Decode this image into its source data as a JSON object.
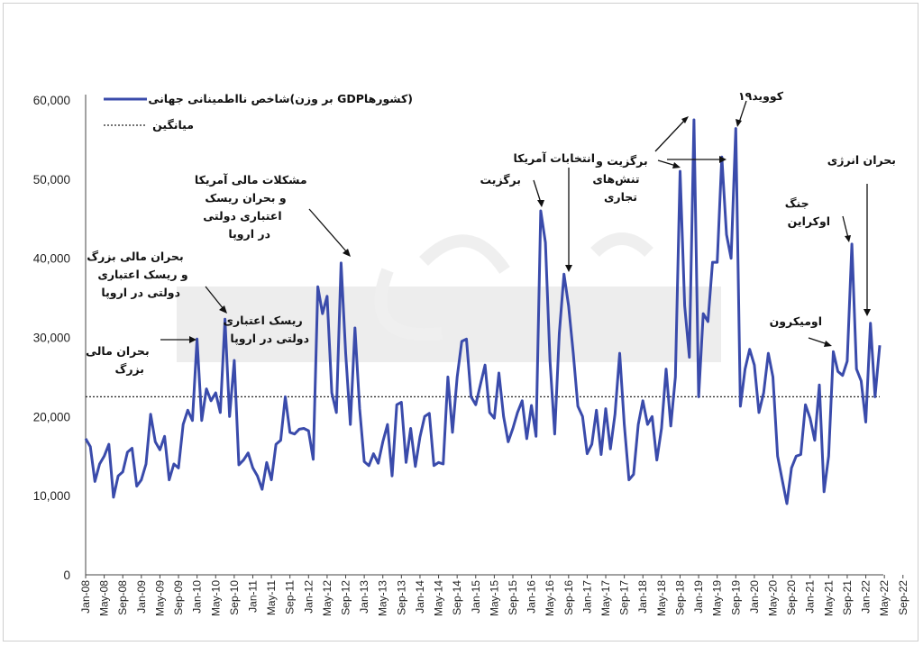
{
  "chart_data": {
    "type": "line",
    "title": "",
    "xlabel": "",
    "ylabel": "",
    "ylim": [
      0,
      60000
    ],
    "y_ticks": [
      "60,000",
      "50,000",
      "40,000",
      "30,000",
      "20,000",
      "10,000",
      "0"
    ],
    "x_tick_labels": [
      "Jan-08",
      "May-08",
      "Sep-08",
      "Jan-09",
      "May-09",
      "Sep-09",
      "Jan-10",
      "May-10",
      "Sep-10",
      "Jan-11",
      "May-11",
      "Sep-11",
      "Jan-12",
      "May-12",
      "Sep-12",
      "Jan-13",
      "May-13",
      "Sep-13",
      "Jan-14",
      "May-14",
      "Sep-14",
      "Jan-15",
      "May-15",
      "Sep-15",
      "Jan-16",
      "May-16",
      "Sep-16",
      "Jan-17",
      "May-17",
      "Sep-17",
      "Jan-18",
      "May-18",
      "Sep-18",
      "Jan-19",
      "May-19",
      "Sep-19",
      "Jan-20",
      "May-20",
      "Sep-20",
      "Jan-21",
      "May-21",
      "Sep-21",
      "Jan-22",
      "May-22",
      "Sep-22"
    ],
    "legend": {
      "placement": "top-left",
      "series_label": "شاخص نااطمینانی جهانی(بر وزن GDPکشورها)",
      "mean_label": "میانگین"
    },
    "mean_value": 22500,
    "series": [
      {
        "name": "شاخص نااطمینانی جهانی(بر وزن GDPکشورها)",
        "color": "#3a4bab",
        "start": "Jan-08",
        "values": [
          17200,
          16200,
          11800,
          14000,
          15000,
          16500,
          9800,
          12500,
          13000,
          15500,
          16000,
          11200,
          12000,
          14000,
          20300,
          16800,
          15800,
          17500,
          12000,
          14000,
          13500,
          19000,
          20800,
          19500,
          29800,
          19500,
          23500,
          22000,
          23000,
          20500,
          32300,
          20000,
          27100,
          13900,
          14500,
          15400,
          13500,
          12500,
          10800,
          14200,
          12000,
          16500,
          17000,
          22500,
          18000,
          17800,
          18400,
          18500,
          18200,
          14600,
          36400,
          33000,
          35200,
          23000,
          20500,
          39400,
          28000,
          19000,
          31200,
          21000,
          14300,
          13800,
          15300,
          14100,
          16800,
          19000,
          12500,
          21500,
          21800,
          14200,
          18500,
          13700,
          17400,
          20000,
          20400,
          13800,
          14200,
          14000,
          25000,
          18000,
          25000,
          29500,
          29800,
          22500,
          21500,
          24000,
          26500,
          20500,
          19800,
          25500,
          20000,
          16800,
          18500,
          20500,
          22000,
          17200,
          21400,
          17500,
          46000,
          42000,
          27000,
          17800,
          30500,
          38000,
          34000,
          28000,
          21300,
          20000,
          15300,
          16500,
          20800,
          15200,
          21000,
          15900,
          20300,
          28000,
          19000,
          12000,
          12700,
          19000,
          22000,
          19000,
          20000,
          14500,
          18500,
          26000,
          18800,
          25000,
          51000,
          34000,
          27500,
          57500,
          22500,
          33000,
          32000,
          39500,
          39500,
          52800,
          43000,
          40000,
          56400,
          21300,
          26000,
          28500,
          26500,
          20500,
          23000,
          28000,
          25000,
          15000,
          12000,
          9000,
          13500,
          15000,
          15200,
          21500,
          19800,
          17000,
          24000,
          10500,
          15000,
          28200,
          25700,
          25200,
          27000,
          41800,
          26000,
          24500,
          19300,
          31800,
          22500,
          29000
        ]
      }
    ],
    "annotations": [
      {
        "id": "gfc",
        "lines": [
          "بحران مالی",
          "بزرگ"
        ]
      },
      {
        "id": "gfc-euro",
        "lines": [
          "بحران مالی بزرگ",
          "و ریسک اعتباری",
          "دولتی در اروپا"
        ]
      },
      {
        "id": "euro-credit",
        "lines": [
          "ریسک اعتباری",
          "دولتی در اروپا"
        ]
      },
      {
        "id": "us-fiscal",
        "lines": [
          "مشکلات مالی آمریکا",
          "و بحران ریسک",
          "اعتباری دولتی",
          "در اروپا"
        ]
      },
      {
        "id": "brexit",
        "lines": [
          "برگزیت"
        ]
      },
      {
        "id": "us-election",
        "lines": [
          "انتخابات آمریکا"
        ]
      },
      {
        "id": "brexit-trade",
        "lines": [
          "برگزیت و",
          "تنش‌های",
          "تجاری"
        ]
      },
      {
        "id": "covid",
        "lines": [
          "کووید۱۹"
        ]
      },
      {
        "id": "omicron",
        "lines": [
          "اومیکرون"
        ]
      },
      {
        "id": "ukraine",
        "lines": [
          "جنگ",
          "اوکراین"
        ]
      },
      {
        "id": "energy",
        "lines": [
          "بحران انرژی"
        ]
      }
    ]
  }
}
